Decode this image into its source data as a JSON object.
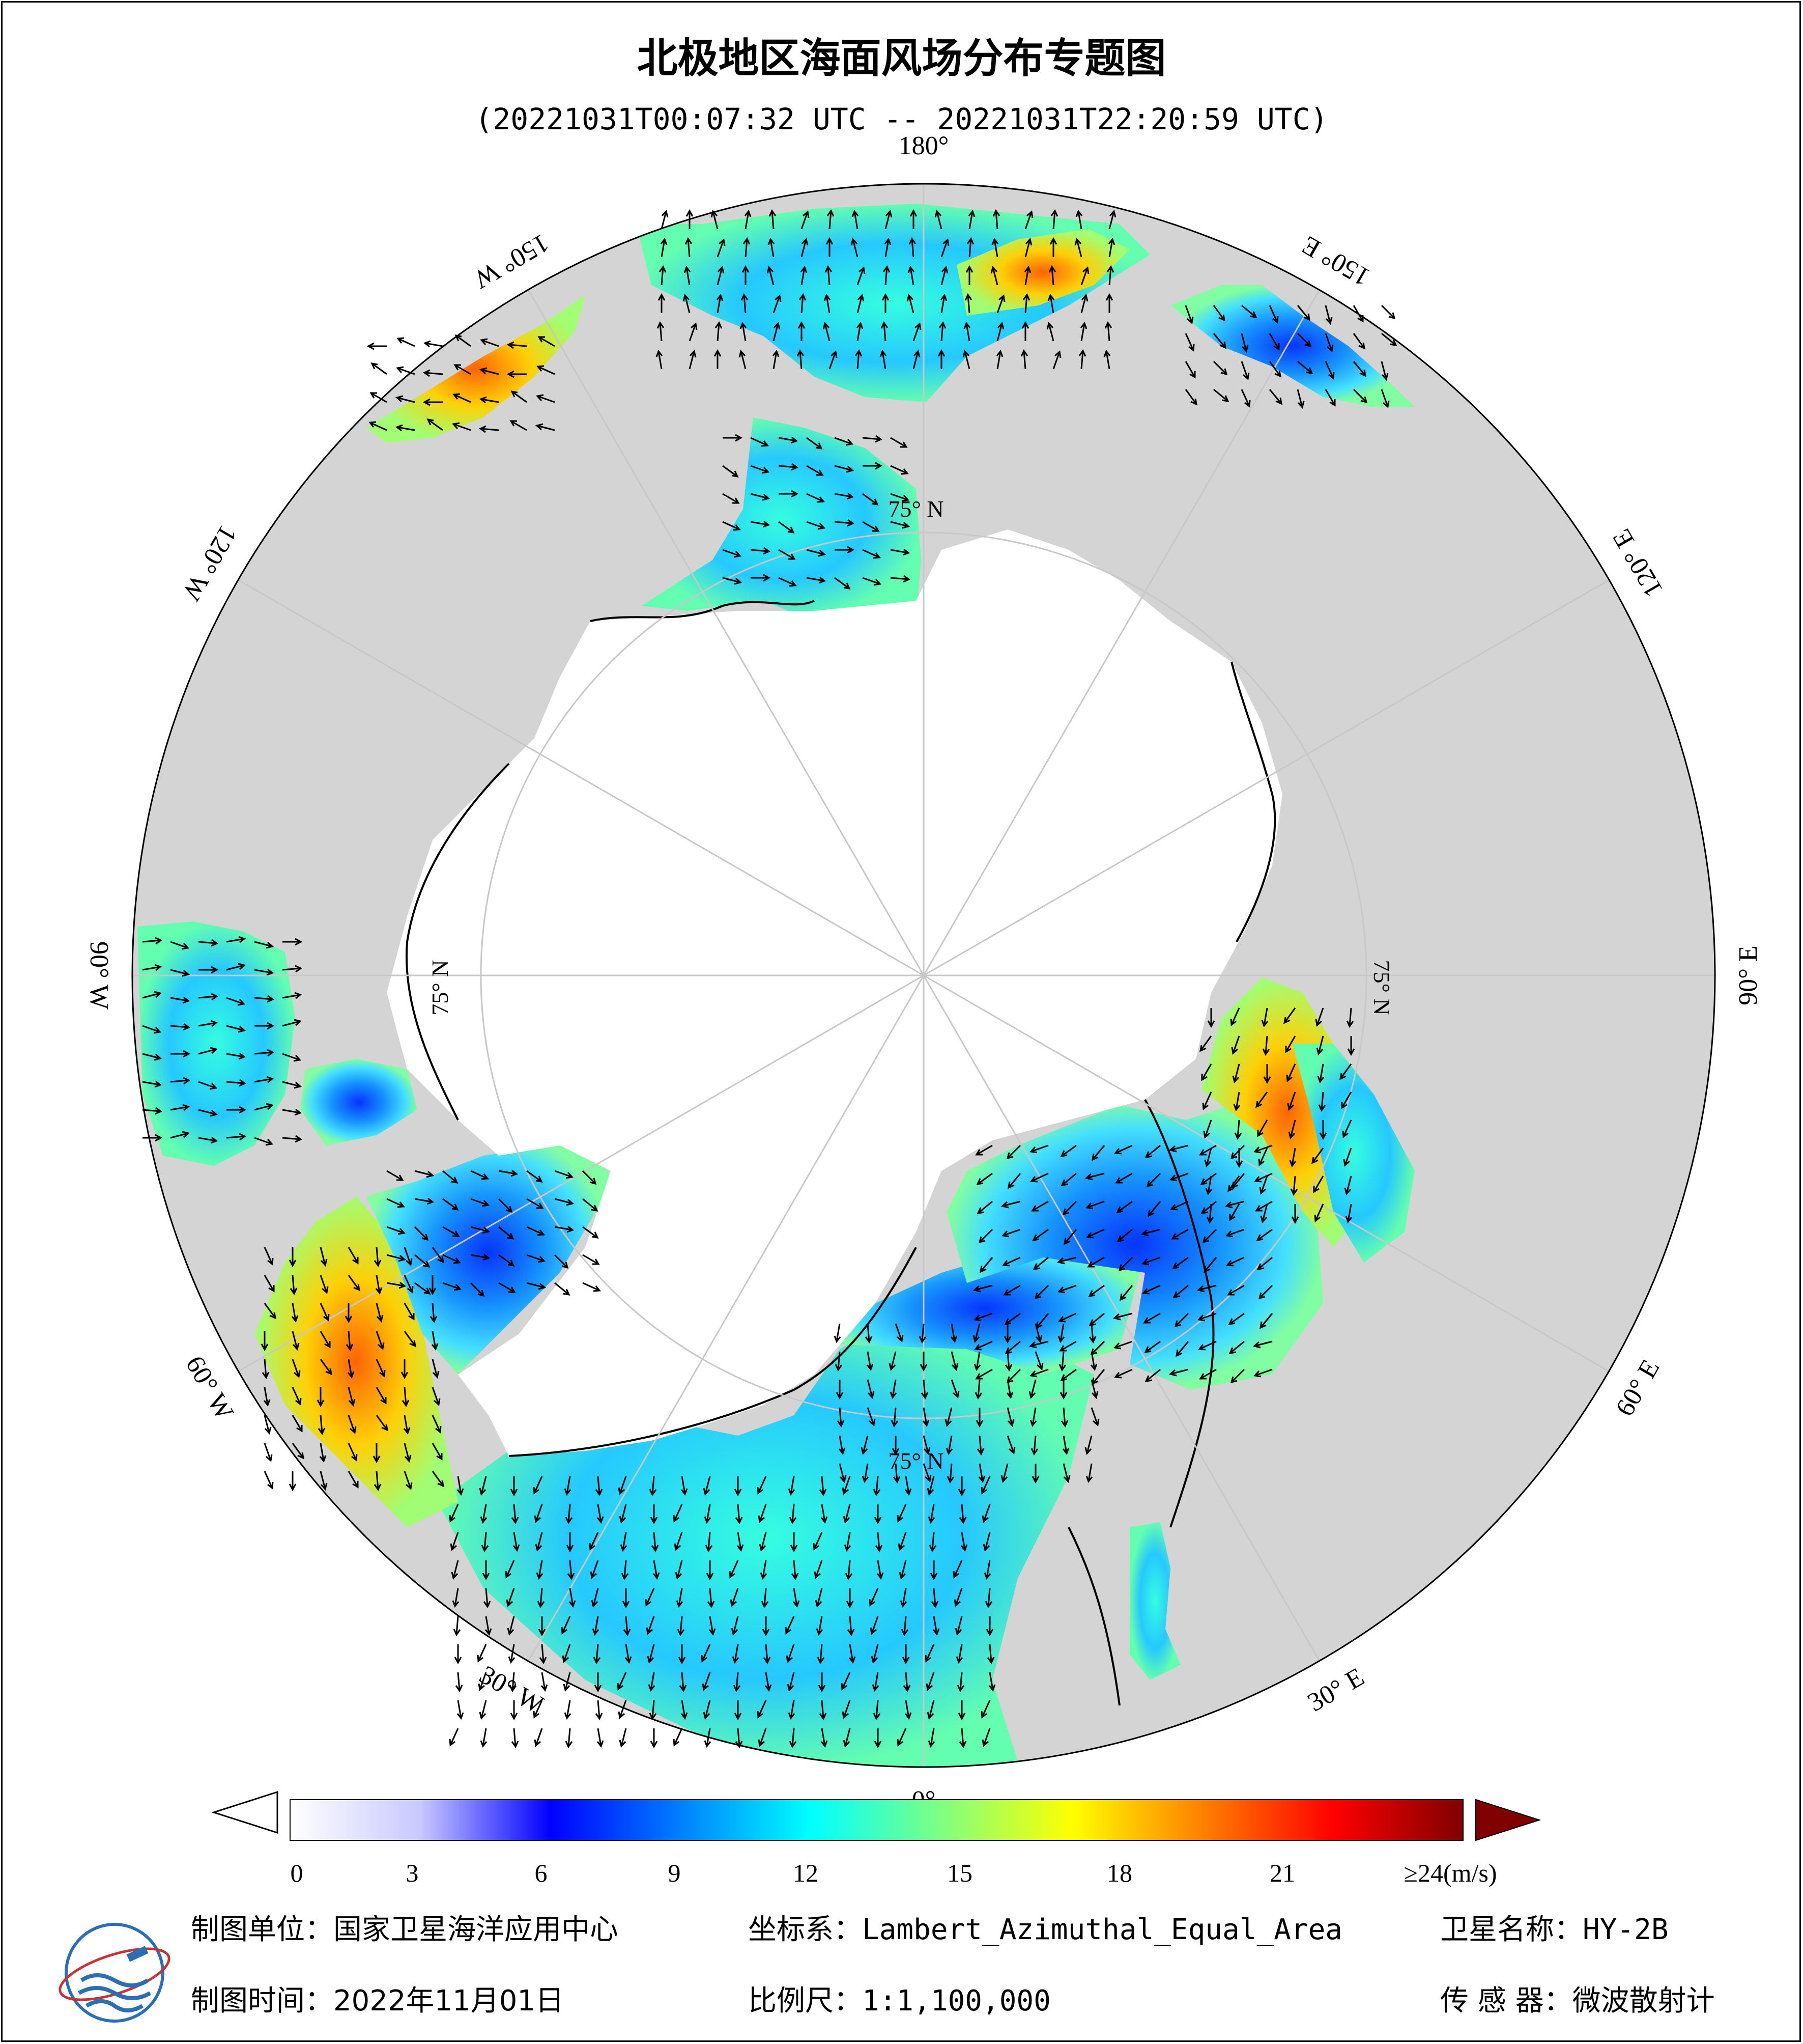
{
  "title": "北极地区海面风场分布专题图",
  "time_range": "(20221031T00:07:32 UTC -- 20221031T22:20:59 UTC)",
  "map": {
    "projection_lat_label": "75° N",
    "lon_labels": [
      {
        "text": "180°",
        "lon": 180
      },
      {
        "text": "150° E",
        "lon": 150
      },
      {
        "text": "120° E",
        "lon": 120
      },
      {
        "text": "90° E",
        "lon": 90
      },
      {
        "text": "60° E",
        "lon": 60
      },
      {
        "text": "30° E",
        "lon": 30
      },
      {
        "text": "0°",
        "lon": 0
      },
      {
        "text": "30° W",
        "lon": -30
      },
      {
        "text": "60° W",
        "lon": -60
      },
      {
        "text": "90° W",
        "lon": -90
      },
      {
        "text": "120° W",
        "lon": -120
      },
      {
        "text": "150° W",
        "lon": -150
      }
    ],
    "colors": {
      "land": "#d4d4d4",
      "ice": "#ffffff",
      "coast": "#000000",
      "grid": "#c8c8c8"
    }
  },
  "colorbar": {
    "unit": "(m/s)",
    "ticks": [
      "0",
      "3",
      "6",
      "9",
      "12",
      "15",
      "18",
      "21",
      "≥24"
    ],
    "colors": [
      "#ffffff",
      "#c8c8ff",
      "#0000ff",
      "#0080ff",
      "#00ffff",
      "#80ff80",
      "#ffff00",
      "#ff8000",
      "#ff0000",
      "#800000"
    ]
  },
  "footer": {
    "unit_label": "制图单位：",
    "unit_value": "国家卫星海洋应用中心",
    "coord_label": "坐标系：",
    "coord_value": "Lambert_Azimuthal_Equal_Area",
    "satellite_label": "卫星名称：",
    "satellite_value": "HY-2B",
    "date_label": "制图时间：",
    "date_value": "2022年11月01日",
    "scale_label": "比例尺：",
    "scale_value": "1:1,100,000",
    "sensor_label": "传 感 器：",
    "sensor_value": "微波散射计"
  }
}
